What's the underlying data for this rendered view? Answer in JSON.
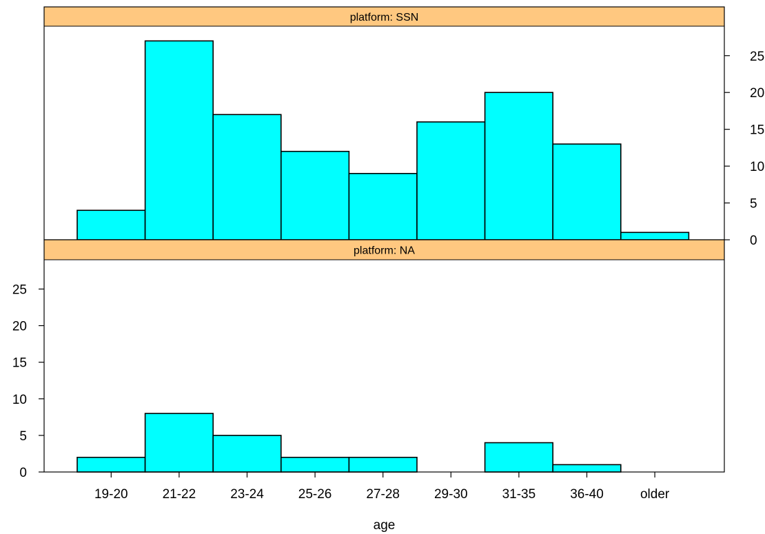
{
  "chart_data": {
    "type": "bar",
    "xlabel": "age",
    "ylabel": "",
    "categories": [
      "19-20",
      "21-22",
      "23-24",
      "25-26",
      "27-28",
      "29-30",
      "31-35",
      "36-40",
      "older"
    ],
    "ylim": [
      0,
      29
    ],
    "yticks": [
      0,
      5,
      10,
      15,
      20,
      25
    ],
    "bar_color": "#00ffff",
    "strip_color": "#ffc880",
    "panels": [
      {
        "strip": "platform: SSN",
        "values": [
          4,
          27,
          17,
          12,
          9,
          16,
          20,
          13,
          1
        ],
        "yaxis_side": "right"
      },
      {
        "strip": "platform: NA",
        "values": [
          2,
          8,
          5,
          2,
          2,
          0,
          4,
          1,
          0
        ],
        "yaxis_side": "left"
      }
    ]
  }
}
